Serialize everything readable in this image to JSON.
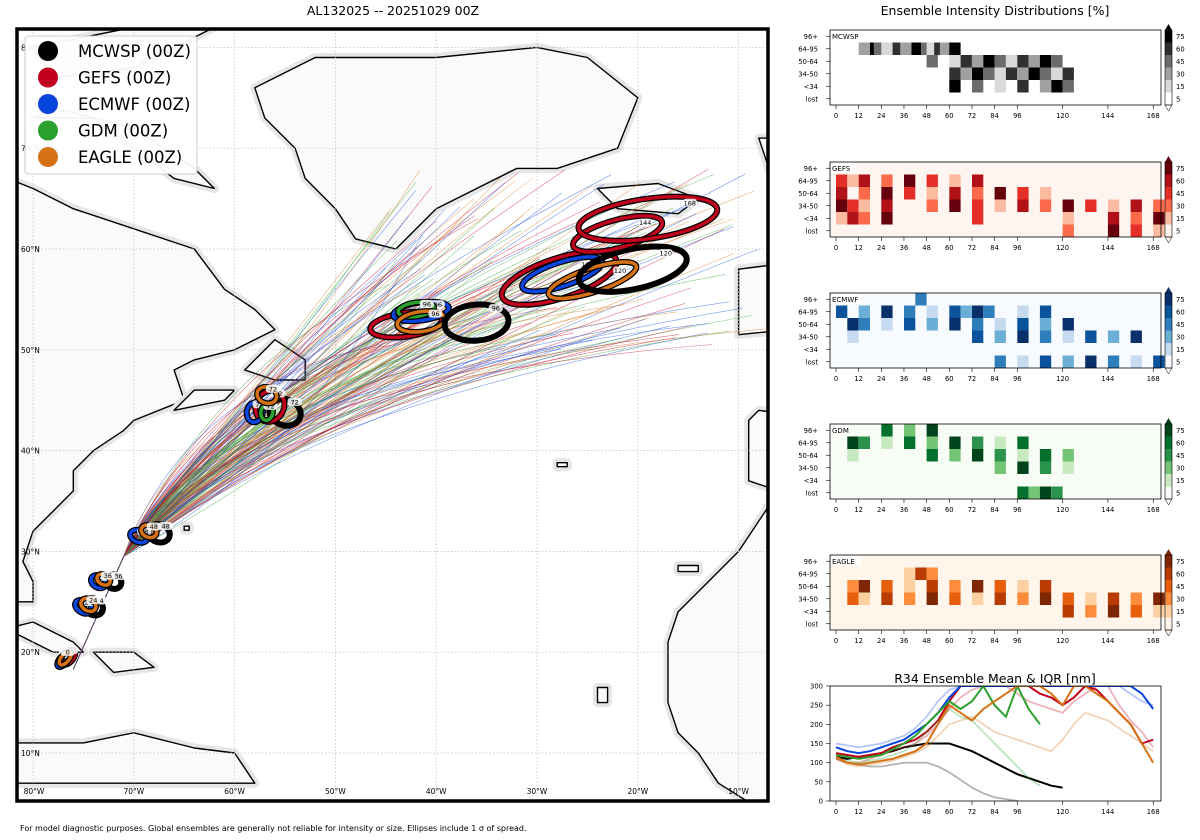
{
  "map": {
    "title": "AL132025 -- 20251029 00Z",
    "footer": "For model diagnostic purposes. Global ensembles are generally not reliable for intensity or size. Ellipses include 1 σ of spread.",
    "lat_labels": [
      "10°N",
      "20°N",
      "30°N",
      "40°N",
      "50°N",
      "60°N",
      "70°N",
      "80°N"
    ],
    "lon_labels": [
      "80°W",
      "70°W",
      "60°W",
      "50°W",
      "40°W",
      "30°W",
      "20°W",
      "10°W"
    ],
    "legend": [
      {
        "label": "MCWSP (00Z)",
        "color": "#000000"
      },
      {
        "label": "GEFS (00Z)",
        "color": "#c0001c"
      },
      {
        "label": "ECMWF (00Z)",
        "color": "#0a45e0"
      },
      {
        "label": "GDM (00Z)",
        "color": "#2ca02c"
      },
      {
        "label": "EAGLE (00Z)",
        "color": "#d57216"
      }
    ],
    "forecast_hour_labels": [
      "0",
      "12",
      "24",
      "36",
      "48",
      "72",
      "96",
      "120",
      "144",
      "168"
    ]
  },
  "chart_data": [
    {
      "type": "heatmap",
      "title": "Ensemble Intensity Distributions [%]",
      "x": [
        0,
        12,
        24,
        36,
        48,
        60,
        72,
        84,
        96,
        120,
        144,
        168
      ],
      "y_categories": [
        "96+",
        "64-95",
        "50-64",
        "34-50",
        "<34",
        "lost"
      ],
      "colorbar_ticks": [
        5,
        15,
        30,
        45,
        60,
        75
      ],
      "panels": [
        {
          "name": "MCWSP",
          "colormap": "greys",
          "max_hour": 120,
          "rows": {
            "96+": [],
            "64-95": [
              12,
              18,
              20,
              24,
              30,
              34,
              40,
              45,
              48,
              52,
              55,
              60
            ],
            "50-64": [
              48,
              60,
              66,
              72,
              78,
              84,
              90,
              96,
              102,
              108,
              114
            ],
            "34-50": [
              60,
              66,
              72,
              78,
              84,
              90,
              96,
              102,
              108,
              114,
              120
            ],
            "<34": [
              60,
              72,
              84,
              96,
              108,
              114,
              120
            ],
            "lost": []
          }
        },
        {
          "name": "GEFS",
          "colormap": "reds",
          "max_hour": 168,
          "rows": {
            "96+": [],
            "64-95": [
              0,
              6,
              12,
              24,
              36,
              48,
              60,
              72
            ],
            "50-64": [
              0,
              12,
              24,
              36,
              48,
              60,
              72,
              84,
              96,
              108
            ],
            "34-50": [
              0,
              6,
              12,
              24,
              48,
              60,
              72,
              84,
              96,
              108,
              120,
              132,
              144,
              156,
              168
            ],
            "<34": [
              0,
              6,
              12,
              24,
              72,
              120,
              144,
              156,
              168
            ],
            "lost": [
              120,
              144,
              156,
              168
            ]
          }
        },
        {
          "name": "ECMWF",
          "colormap": "blues",
          "max_hour": 168,
          "rows": {
            "96+": [
              42
            ],
            "64-95": [
              0,
              12,
              24,
              36,
              48,
              60,
              66,
              72,
              78,
              96,
              108
            ],
            "50-64": [
              6,
              12,
              24,
              36,
              48,
              60,
              72,
              84,
              96,
              108,
              120
            ],
            "34-50": [
              6,
              72,
              84,
              96,
              108,
              120,
              132,
              144,
              156
            ],
            "<34": [],
            "lost": [
              84,
              96,
              108,
              120,
              132,
              144,
              156,
              168
            ]
          }
        },
        {
          "name": "GDM",
          "colormap": "greens",
          "max_hour": 120,
          "rows": {
            "96+": [
              24,
              36,
              48
            ],
            "64-95": [
              6,
              12,
              24,
              36,
              48,
              60,
              72,
              84,
              96
            ],
            "50-64": [
              6,
              48,
              60,
              72,
              84,
              96,
              108,
              120
            ],
            "34-50": [
              84,
              96,
              108,
              120
            ],
            "<34": [],
            "lost": [
              96,
              102,
              108,
              114
            ]
          }
        },
        {
          "name": "EAGLE",
          "colormap": "oranges",
          "max_hour": 168,
          "rows": {
            "96+": [],
            "64-95": [
              36,
              42,
              48
            ],
            "50-64": [
              6,
              12,
              24,
              36,
              48,
              60,
              72,
              84,
              96,
              108
            ],
            "34-50": [
              6,
              12,
              24,
              36,
              48,
              60,
              72,
              84,
              96,
              108,
              120,
              132,
              144,
              156,
              168
            ],
            "<34": [
              120,
              132,
              144,
              156,
              168
            ],
            "lost": []
          }
        }
      ]
    },
    {
      "type": "line",
      "title": "R34 Ensemble Mean & IQR [nm]",
      "x": [
        0,
        6,
        12,
        18,
        24,
        30,
        36,
        42,
        48,
        54,
        60,
        66,
        72,
        78,
        84,
        90,
        96,
        102,
        108,
        114,
        120,
        126,
        132,
        138,
        144,
        150,
        156,
        162,
        168
      ],
      "xticks": [
        0,
        12,
        24,
        36,
        48,
        60,
        72,
        84,
        96,
        120,
        144,
        168
      ],
      "yticks": [
        0,
        50,
        100,
        150,
        200,
        250,
        300
      ],
      "ylim": [
        0,
        300
      ],
      "series": [
        {
          "name": "MCWSP",
          "color": "#000000",
          "values": [
            115,
            110,
            115,
            120,
            125,
            130,
            140,
            145,
            150,
            150,
            150,
            140,
            130,
            115,
            100,
            85,
            70,
            60,
            50,
            40,
            35,
            null,
            null,
            null,
            null,
            null,
            null,
            null,
            null
          ]
        },
        {
          "name": "MCWSP IQR low",
          "color": "#000000",
          "faint": true,
          "values": [
            110,
            100,
            95,
            90,
            90,
            95,
            100,
            100,
            100,
            90,
            75,
            55,
            35,
            20,
            10,
            5,
            0,
            null,
            null,
            null,
            null,
            null,
            null,
            null,
            null,
            null,
            null,
            null,
            null
          ]
        },
        {
          "name": "GEFS",
          "color": "#c0001c",
          "values": [
            125,
            120,
            115,
            120,
            125,
            140,
            150,
            160,
            180,
            210,
            260,
            300,
            300,
            300,
            300,
            300,
            300,
            300,
            280,
            270,
            250,
            270,
            300,
            290,
            260,
            230,
            200,
            150,
            160
          ]
        },
        {
          "name": "GEFS IQR",
          "color": "#c0001c",
          "faint": true,
          "values": [
            110,
            100,
            100,
            110,
            120,
            130,
            140,
            150,
            170,
            200,
            240,
            270,
            290,
            300,
            300,
            300,
            280,
            260,
            250,
            240,
            230,
            260,
            280,
            300,
            300,
            250,
            210,
            180,
            140
          ]
        },
        {
          "name": "ECMWF",
          "color": "#0a45e0",
          "values": [
            140,
            130,
            125,
            130,
            140,
            150,
            160,
            180,
            200,
            230,
            270,
            300,
            300,
            300,
            300,
            300,
            300,
            300,
            300,
            300,
            300,
            300,
            300,
            300,
            300,
            300,
            300,
            280,
            240
          ]
        },
        {
          "name": "ECMWF IQR",
          "color": "#0a45e0",
          "faint": true,
          "values": [
            150,
            145,
            140,
            145,
            150,
            160,
            170,
            190,
            220,
            260,
            290,
            300,
            300,
            300,
            300,
            300,
            300,
            300,
            300,
            300,
            300,
            300,
            300,
            300,
            300,
            300,
            280,
            260,
            250
          ]
        },
        {
          "name": "GDM",
          "color": "#2ca02c",
          "values": [
            120,
            115,
            110,
            115,
            120,
            135,
            150,
            170,
            200,
            230,
            260,
            240,
            260,
            300,
            250,
            220,
            300,
            240,
            200,
            null,
            null,
            null,
            null,
            null,
            null,
            null,
            null,
            null,
            null
          ]
        },
        {
          "name": "GDM IQR",
          "color": "#2ca02c",
          "faint": true,
          "values": [
            115,
            105,
            100,
            105,
            110,
            120,
            130,
            150,
            180,
            210,
            240,
            220,
            210,
            180,
            150,
            120,
            90,
            60,
            40,
            null,
            null,
            null,
            null,
            null,
            null,
            null,
            null,
            null,
            null
          ]
        },
        {
          "name": "EAGLE",
          "color": "#d57216",
          "values": [
            115,
            100,
            95,
            100,
            105,
            110,
            120,
            130,
            150,
            200,
            250,
            230,
            210,
            240,
            260,
            280,
            300,
            300,
            300,
            280,
            250,
            300,
            300,
            280,
            260,
            230,
            200,
            150,
            100
          ]
        },
        {
          "name": "EAGLE IQR",
          "color": "#d57216",
          "faint": true,
          "values": [
            110,
            95,
            90,
            95,
            100,
            105,
            115,
            125,
            140,
            170,
            200,
            210,
            220,
            200,
            180,
            170,
            160,
            150,
            140,
            130,
            160,
            200,
            230,
            220,
            210,
            190,
            170,
            150,
            130
          ]
        }
      ]
    }
  ]
}
